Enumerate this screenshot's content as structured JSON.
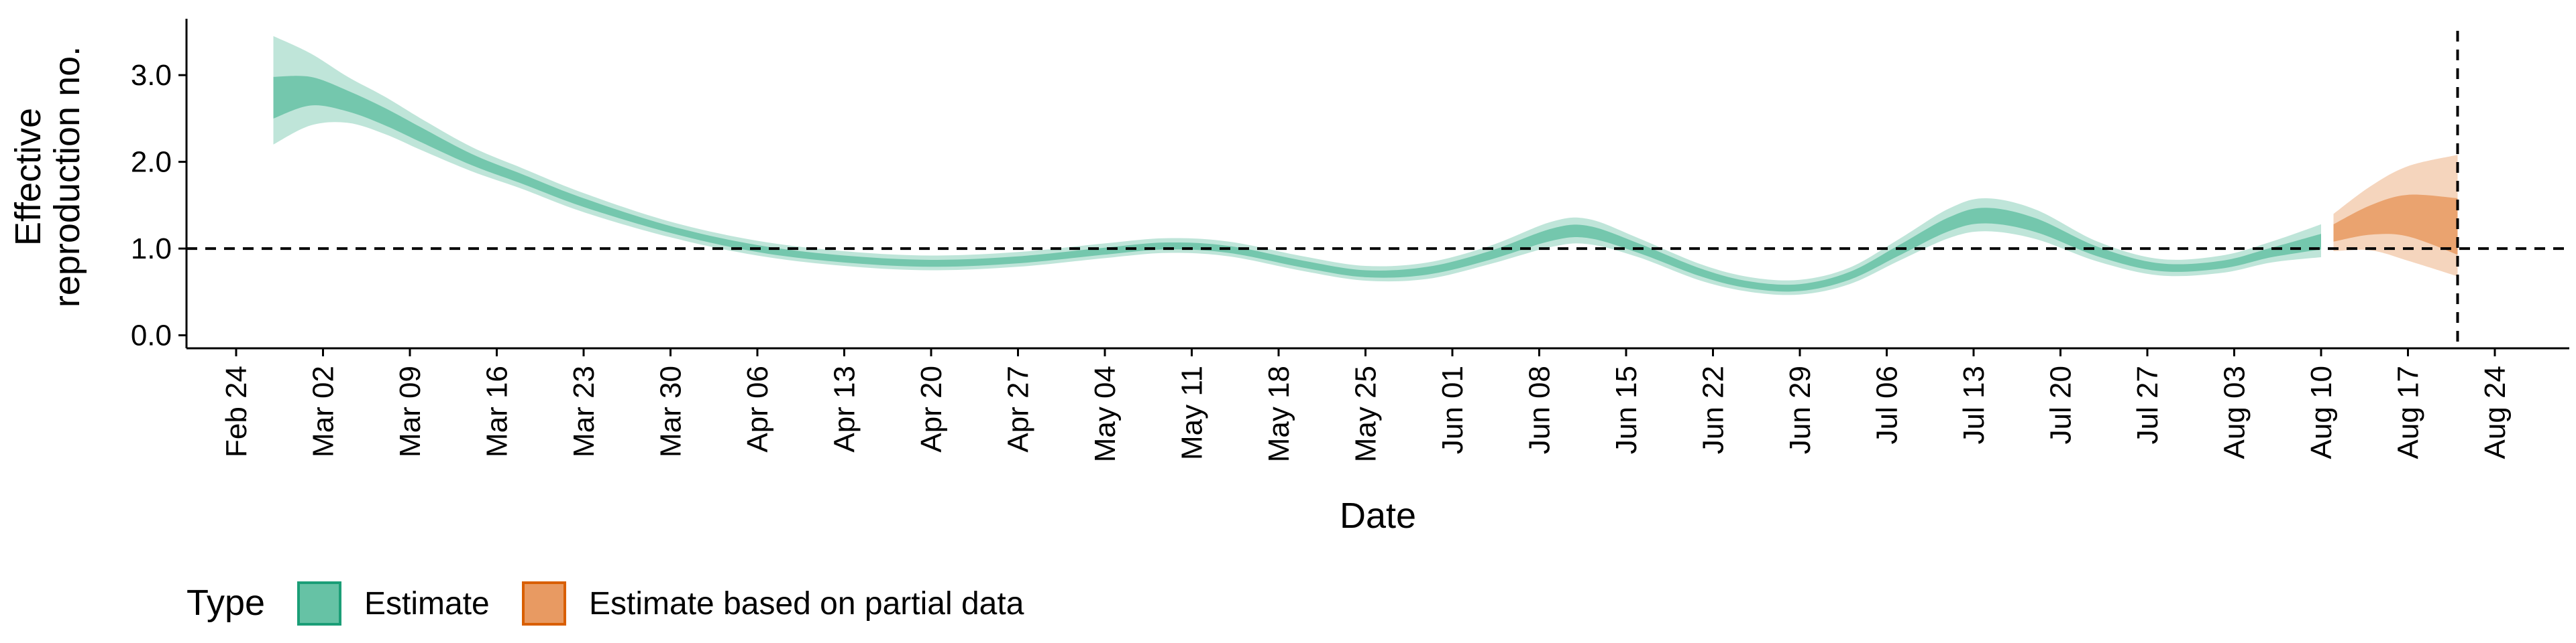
{
  "chart_data": {
    "type": "area",
    "xlabel": "Date",
    "ylabel_lines": [
      "Effective",
      "reproduction no."
    ],
    "x_range": [
      "2020-02-20",
      "2020-08-30"
    ],
    "ylim": [
      -0.15,
      3.65
    ],
    "y_ticks": [
      0.0,
      1.0,
      2.0,
      3.0
    ],
    "y_tick_labels": [
      "0.0",
      "1.0",
      "2.0",
      "3.0"
    ],
    "x_ticks": [
      "2020-02-24",
      "2020-03-02",
      "2020-03-09",
      "2020-03-16",
      "2020-03-23",
      "2020-03-30",
      "2020-04-06",
      "2020-04-13",
      "2020-04-20",
      "2020-04-27",
      "2020-05-04",
      "2020-05-11",
      "2020-05-18",
      "2020-05-25",
      "2020-06-01",
      "2020-06-08",
      "2020-06-15",
      "2020-06-22",
      "2020-06-29",
      "2020-07-06",
      "2020-07-13",
      "2020-07-20",
      "2020-07-27",
      "2020-08-03",
      "2020-08-10",
      "2020-08-17",
      "2020-08-24"
    ],
    "x_tick_labels": [
      "Feb 24",
      "Mar 02",
      "Mar 09",
      "Mar 16",
      "Mar 23",
      "Mar 30",
      "Apr 06",
      "Apr 13",
      "Apr 20",
      "Apr 27",
      "May 04",
      "May 11",
      "May 18",
      "May 25",
      "Jun 01",
      "Jun 08",
      "Jun 15",
      "Jun 22",
      "Jun 29",
      "Jul 06",
      "Jul 13",
      "Jul 20",
      "Jul 27",
      "Aug 03",
      "Aug 10",
      "Aug 17",
      "Aug 24"
    ],
    "reference_lines": {
      "horizontal_y": 1.0,
      "vertical_x": "2020-08-21"
    },
    "grid": false,
    "legend": {
      "title": "Type",
      "position": "bottom-left",
      "entries": [
        {
          "label": "Estimate",
          "fill": "#66c2a5",
          "stroke": "#1b9e77"
        },
        {
          "label": "Estimate based on partial data",
          "fill": "#e89a62",
          "stroke": "#d95f02"
        }
      ]
    },
    "series": [
      {
        "name": "Estimate",
        "color": "#66c2a5",
        "points": [
          {
            "x": "2020-02-27",
            "median": 2.75,
            "lo50": 2.5,
            "hi50": 2.98,
            "lo90": 2.2,
            "hi90": 3.45
          },
          {
            "x": "2020-03-01",
            "median": 2.82,
            "lo50": 2.65,
            "hi50": 2.98,
            "lo90": 2.42,
            "hi90": 3.25
          },
          {
            "x": "2020-03-04",
            "median": 2.7,
            "lo50": 2.58,
            "hi50": 2.82,
            "lo90": 2.45,
            "hi90": 2.98
          },
          {
            "x": "2020-03-07",
            "median": 2.52,
            "lo50": 2.42,
            "hi50": 2.62,
            "lo90": 2.32,
            "hi90": 2.75
          },
          {
            "x": "2020-03-10",
            "median": 2.3,
            "lo50": 2.22,
            "hi50": 2.39,
            "lo90": 2.13,
            "hi90": 2.49
          },
          {
            "x": "2020-03-14",
            "median": 2.02,
            "lo50": 1.96,
            "hi50": 2.09,
            "lo90": 1.89,
            "hi90": 2.17
          },
          {
            "x": "2020-03-18",
            "median": 1.8,
            "lo50": 1.75,
            "hi50": 1.86,
            "lo90": 1.69,
            "hi90": 1.93
          },
          {
            "x": "2020-03-23",
            "median": 1.53,
            "lo50": 1.48,
            "hi50": 1.58,
            "lo90": 1.42,
            "hi90": 1.64
          },
          {
            "x": "2020-03-30",
            "median": 1.22,
            "lo50": 1.18,
            "hi50": 1.26,
            "lo90": 1.13,
            "hi90": 1.31
          },
          {
            "x": "2020-04-06",
            "median": 1.0,
            "lo50": 0.96,
            "hi50": 1.04,
            "lo90": 0.92,
            "hi90": 1.09
          },
          {
            "x": "2020-04-13",
            "median": 0.88,
            "lo50": 0.84,
            "hi50": 0.92,
            "lo90": 0.8,
            "hi90": 0.97
          },
          {
            "x": "2020-04-20",
            "median": 0.83,
            "lo50": 0.79,
            "hi50": 0.87,
            "lo90": 0.75,
            "hi90": 0.92
          },
          {
            "x": "2020-04-27",
            "median": 0.87,
            "lo50": 0.83,
            "hi50": 0.91,
            "lo90": 0.79,
            "hi90": 0.96
          },
          {
            "x": "2020-05-04",
            "median": 0.97,
            "lo50": 0.93,
            "hi50": 1.01,
            "lo90": 0.89,
            "hi90": 1.06
          },
          {
            "x": "2020-05-09",
            "median": 1.03,
            "lo50": 0.99,
            "hi50": 1.07,
            "lo90": 0.95,
            "hi90": 1.12
          },
          {
            "x": "2020-05-14",
            "median": 0.99,
            "lo50": 0.95,
            "hi50": 1.03,
            "lo90": 0.91,
            "hi90": 1.08
          },
          {
            "x": "2020-05-20",
            "median": 0.82,
            "lo50": 0.78,
            "hi50": 0.86,
            "lo90": 0.74,
            "hi90": 0.91
          },
          {
            "x": "2020-05-25",
            "median": 0.71,
            "lo50": 0.67,
            "hi50": 0.75,
            "lo90": 0.63,
            "hi90": 0.8
          },
          {
            "x": "2020-05-30",
            "median": 0.74,
            "lo50": 0.7,
            "hi50": 0.79,
            "lo90": 0.65,
            "hi90": 0.84
          },
          {
            "x": "2020-06-04",
            "median": 0.92,
            "lo50": 0.87,
            "hi50": 0.97,
            "lo90": 0.82,
            "hi90": 1.03
          },
          {
            "x": "2020-06-09",
            "median": 1.16,
            "lo50": 1.09,
            "hi50": 1.23,
            "lo90": 1.02,
            "hi90": 1.31
          },
          {
            "x": "2020-06-12",
            "median": 1.19,
            "lo50": 1.12,
            "hi50": 1.26,
            "lo90": 1.05,
            "hi90": 1.34
          },
          {
            "x": "2020-06-16",
            "median": 1.0,
            "lo50": 0.95,
            "hi50": 1.06,
            "lo90": 0.9,
            "hi90": 1.12
          },
          {
            "x": "2020-06-21",
            "median": 0.72,
            "lo50": 0.68,
            "hi50": 0.77,
            "lo90": 0.63,
            "hi90": 0.82
          },
          {
            "x": "2020-06-25",
            "median": 0.58,
            "lo50": 0.54,
            "hi50": 0.62,
            "lo90": 0.5,
            "hi90": 0.67
          },
          {
            "x": "2020-06-29",
            "median": 0.55,
            "lo50": 0.51,
            "hi50": 0.59,
            "lo90": 0.47,
            "hi90": 0.64
          },
          {
            "x": "2020-07-03",
            "median": 0.68,
            "lo50": 0.64,
            "hi50": 0.73,
            "lo90": 0.59,
            "hi90": 0.78
          },
          {
            "x": "2020-07-07",
            "median": 0.98,
            "lo50": 0.92,
            "hi50": 1.04,
            "lo90": 0.86,
            "hi90": 1.11
          },
          {
            "x": "2020-07-11",
            "median": 1.28,
            "lo50": 1.2,
            "hi50": 1.36,
            "lo90": 1.12,
            "hi90": 1.46
          },
          {
            "x": "2020-07-14",
            "median": 1.38,
            "lo50": 1.29,
            "hi50": 1.47,
            "lo90": 1.2,
            "hi90": 1.58
          },
          {
            "x": "2020-07-18",
            "median": 1.27,
            "lo50": 1.19,
            "hi50": 1.35,
            "lo90": 1.11,
            "hi90": 1.45
          },
          {
            "x": "2020-07-23",
            "median": 0.96,
            "lo50": 0.91,
            "hi50": 1.02,
            "lo90": 0.85,
            "hi90": 1.08
          },
          {
            "x": "2020-07-28",
            "median": 0.78,
            "lo50": 0.74,
            "hi50": 0.83,
            "lo90": 0.69,
            "hi90": 0.88
          },
          {
            "x": "2020-08-02",
            "median": 0.81,
            "lo50": 0.77,
            "hi50": 0.86,
            "lo90": 0.72,
            "hi90": 0.92
          },
          {
            "x": "2020-08-06",
            "median": 0.95,
            "lo50": 0.9,
            "hi50": 1.01,
            "lo90": 0.84,
            "hi90": 1.08
          },
          {
            "x": "2020-08-10",
            "median": 1.08,
            "lo50": 0.99,
            "hi50": 1.17,
            "lo90": 0.9,
            "hi90": 1.28
          }
        ]
      },
      {
        "name": "Estimate based on partial data",
        "color": "#e89a62",
        "points": [
          {
            "x": "2020-08-11",
            "median": 1.18,
            "lo50": 1.08,
            "hi50": 1.28,
            "lo90": 0.97,
            "hi90": 1.4
          },
          {
            "x": "2020-08-14",
            "median": 1.33,
            "lo50": 1.16,
            "hi50": 1.5,
            "lo90": 0.98,
            "hi90": 1.72
          },
          {
            "x": "2020-08-17",
            "median": 1.4,
            "lo50": 1.14,
            "hi50": 1.62,
            "lo90": 0.86,
            "hi90": 1.95
          },
          {
            "x": "2020-08-21",
            "median": 1.26,
            "lo50": 0.93,
            "hi50": 1.58,
            "lo90": 0.68,
            "hi90": 2.08
          }
        ]
      }
    ]
  }
}
